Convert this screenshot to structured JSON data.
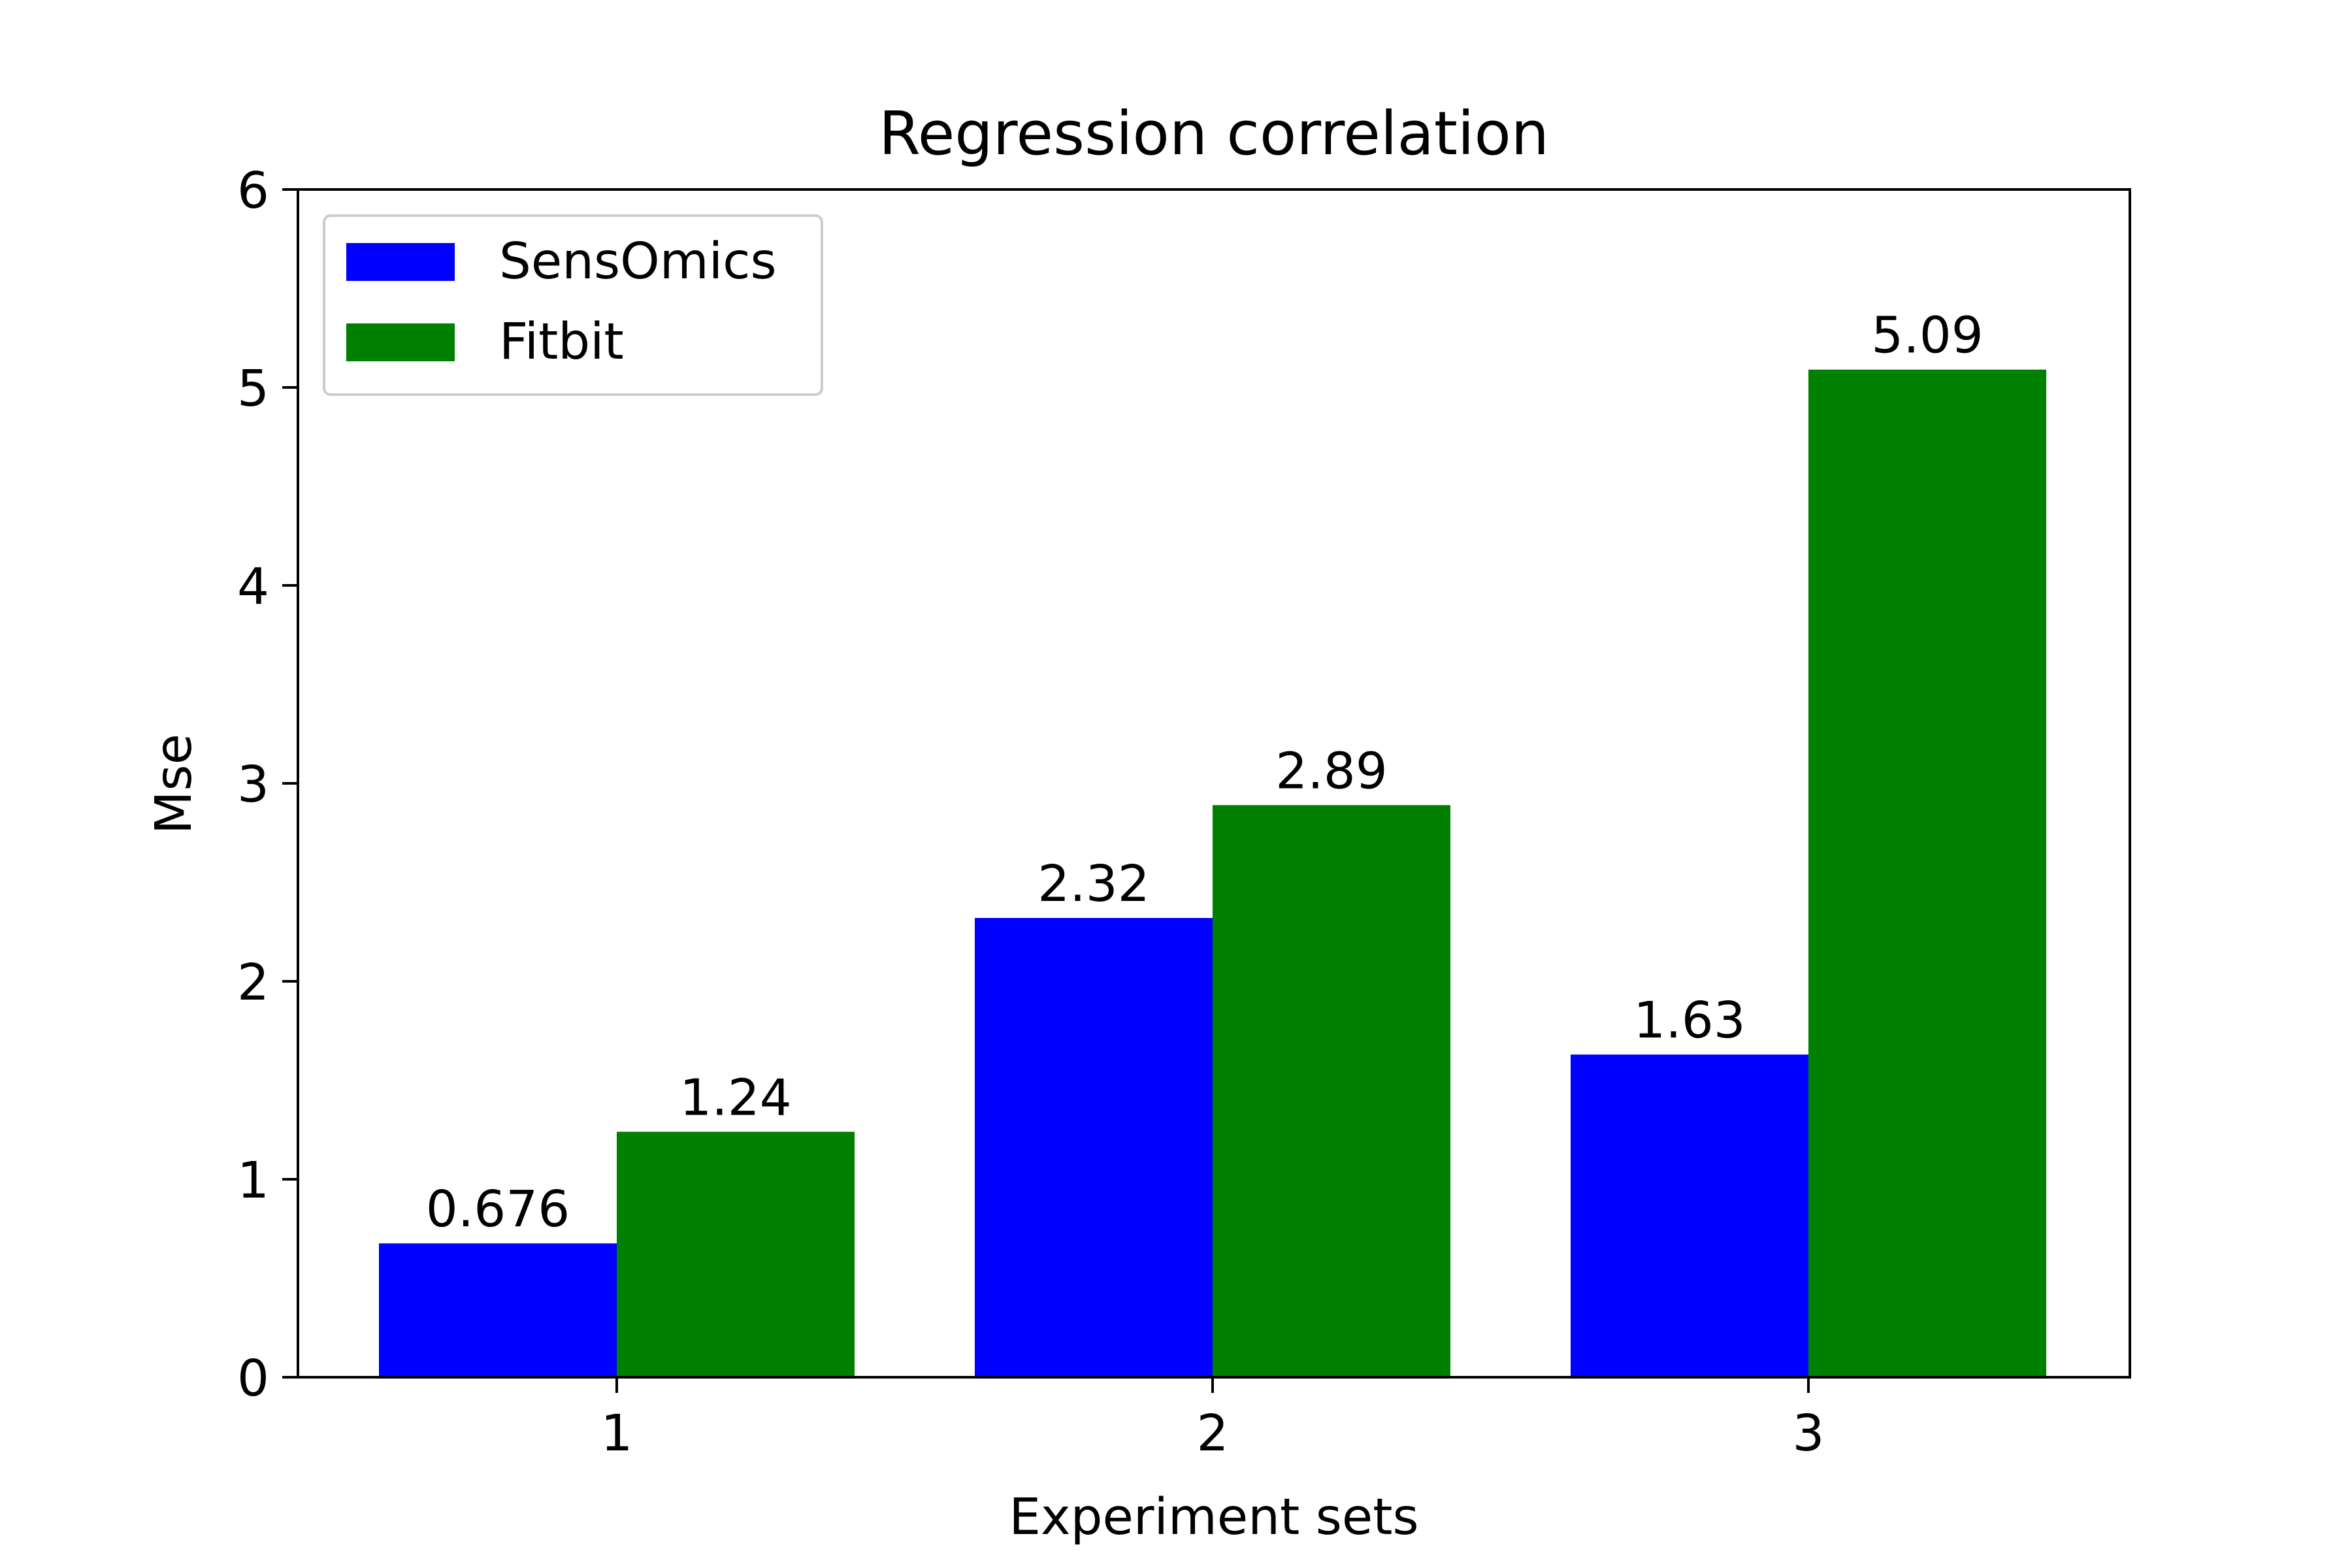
{
  "chart_data": {
    "type": "bar",
    "title": "Regression correlation",
    "xlabel": "Experiment sets",
    "ylabel": "Mse",
    "categories": [
      "1",
      "2",
      "3"
    ],
    "series": [
      {
        "name": "SensOmics",
        "color": "#0000ff",
        "values": [
          0.676,
          2.32,
          1.63
        ],
        "labels": [
          "0.676",
          "2.32",
          "1.63"
        ]
      },
      {
        "name": "Fitbit",
        "color": "#008000",
        "values": [
          1.24,
          2.89,
          5.09
        ],
        "labels": [
          "1.24",
          "2.89",
          "5.09"
        ]
      }
    ],
    "ylim": [
      0,
      6
    ],
    "yticks": [
      "0",
      "1",
      "2",
      "3",
      "4",
      "5",
      "6"
    ],
    "grid": false,
    "legend_position": "top-left"
  }
}
